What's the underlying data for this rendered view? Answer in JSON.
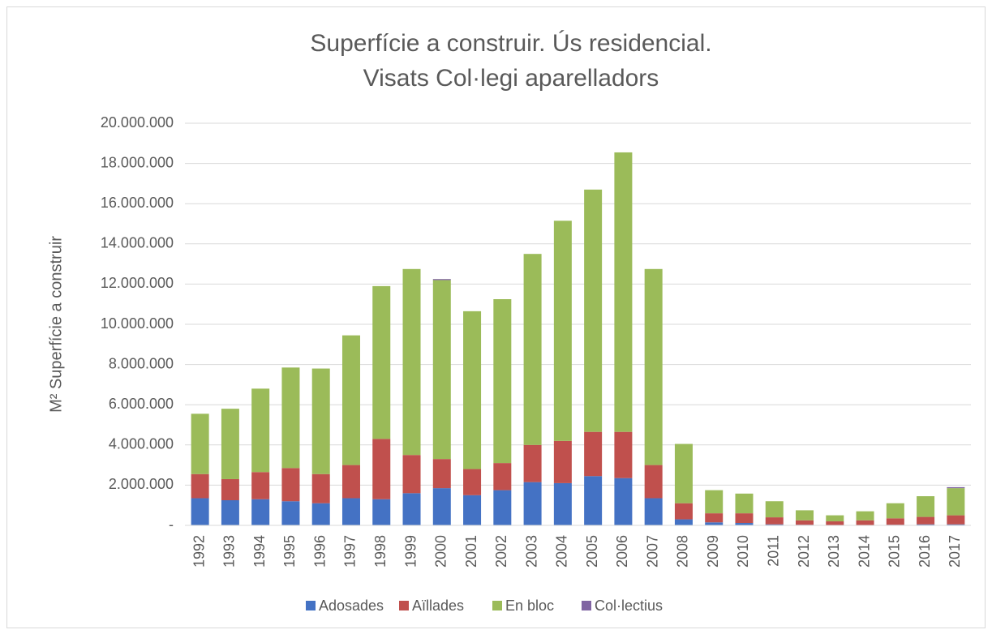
{
  "chart_data": {
    "type": "stacked_bar",
    "title": "Superfície a construir. Ús residencial.",
    "subtitle": "Visats Col·legi aparelladors",
    "y_label": "M² Superfície a construir",
    "categories": [
      "1992",
      "1993",
      "1994",
      "1995",
      "1996",
      "1997",
      "1998",
      "1999",
      "2000",
      "2001",
      "2002",
      "2003",
      "2004",
      "2005",
      "2006",
      "2007",
      "2008",
      "2009",
      "2010",
      "2011",
      "2012",
      "2013",
      "2014",
      "2015",
      "2016",
      "2017"
    ],
    "series": [
      {
        "name": "Adosades",
        "color": "#4472c4",
        "values": [
          1350000,
          1250000,
          1300000,
          1200000,
          1100000,
          1350000,
          1300000,
          1600000,
          1850000,
          1500000,
          1750000,
          2150000,
          2100000,
          2450000,
          2350000,
          1350000,
          300000,
          150000,
          120000,
          50000,
          30000,
          20000,
          20000,
          30000,
          50000,
          50000
        ]
      },
      {
        "name": "Aïllades",
        "color": "#c0504d",
        "values": [
          1200000,
          1050000,
          1350000,
          1650000,
          1450000,
          1650000,
          3000000,
          1900000,
          1450000,
          1300000,
          1350000,
          1850000,
          2100000,
          2200000,
          2300000,
          1650000,
          800000,
          450000,
          480000,
          350000,
          220000,
          180000,
          230000,
          320000,
          370000,
          450000
        ]
      },
      {
        "name": "En bloc",
        "color": "#9bbb59",
        "values": [
          3000000,
          3500000,
          4150000,
          5000000,
          5250000,
          6450000,
          7600000,
          9250000,
          8900000,
          7850000,
          8150000,
          9500000,
          10950000,
          12050000,
          13900000,
          9750000,
          2950000,
          1150000,
          980000,
          800000,
          500000,
          300000,
          450000,
          750000,
          1030000,
          1350000
        ]
      },
      {
        "name": "Col·lectius",
        "color": "#8064a2",
        "values": [
          0,
          0,
          0,
          0,
          0,
          0,
          0,
          0,
          50000,
          0,
          0,
          0,
          0,
          0,
          0,
          0,
          0,
          0,
          0,
          0,
          0,
          0,
          0,
          0,
          0,
          50000
        ]
      }
    ],
    "ylim": [
      0,
      20000000
    ],
    "yticks": [
      {
        "value": 0,
        "label": "-"
      },
      {
        "value": 2000000,
        "label": "2.000.000"
      },
      {
        "value": 4000000,
        "label": "4.000.000"
      },
      {
        "value": 6000000,
        "label": "6.000.000"
      },
      {
        "value": 8000000,
        "label": "8.000.000"
      },
      {
        "value": 10000000,
        "label": "10.000.000"
      },
      {
        "value": 12000000,
        "label": "12.000.000"
      },
      {
        "value": 14000000,
        "label": "14.000.000"
      },
      {
        "value": 16000000,
        "label": "16.000.000"
      },
      {
        "value": 18000000,
        "label": "18.000.000"
      },
      {
        "value": 20000000,
        "label": "20.000.000"
      }
    ],
    "grid": true,
    "legend": "bottom"
  }
}
